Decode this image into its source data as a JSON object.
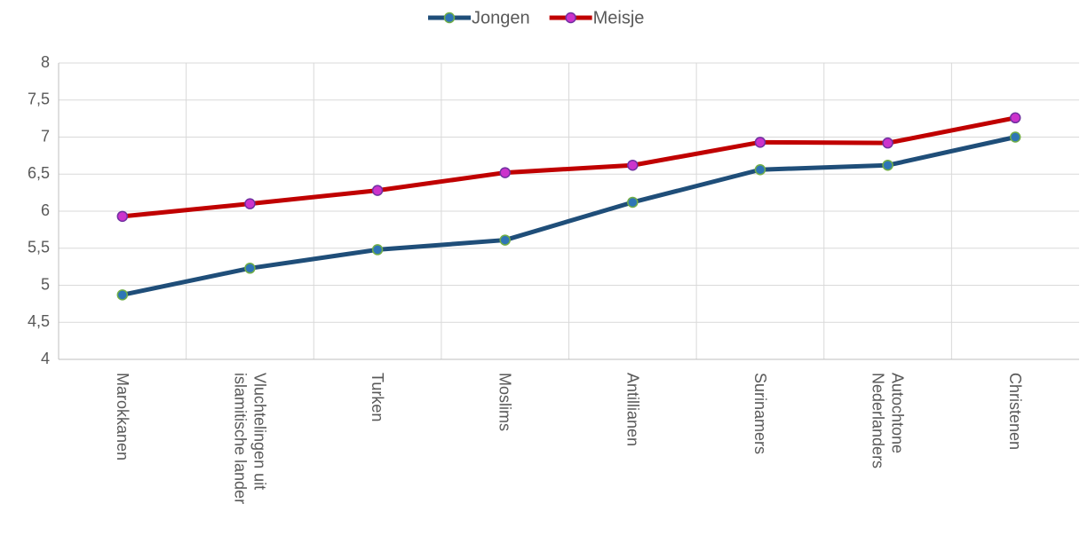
{
  "chart_data": {
    "type": "line",
    "categories": [
      "Marokkanen",
      "Vluchtelingen uit\nislamitische lander",
      "Turken",
      "Moslims",
      "Antillianen",
      "Surinamers",
      "Autochtone\nNederlanders",
      "Christenen"
    ],
    "series": [
      {
        "name": "Jongen",
        "color": "#1f4e79",
        "marker_color": "#2e75b6",
        "marker_edge": "#70ad47",
        "values": [
          4.87,
          5.23,
          5.48,
          5.61,
          6.12,
          6.56,
          6.62,
          7.0
        ]
      },
      {
        "name": "Meisje",
        "color": "#c00000",
        "marker_color": "#cc33cc",
        "marker_edge": "#7030a0",
        "values": [
          5.93,
          6.1,
          6.28,
          6.52,
          6.62,
          6.93,
          6.92,
          7.26
        ]
      }
    ],
    "ylim": [
      4,
      8
    ],
    "yticks": [
      4,
      {
        "value": 4.5,
        "label": "4,5"
      },
      5,
      {
        "value": 5.5,
        "label": "5,5"
      },
      6,
      {
        "value": 6.5,
        "label": "6,5"
      },
      7,
      {
        "value": 7.5,
        "label": "7,5"
      },
      8
    ],
    "grid": true,
    "legend": "top"
  }
}
